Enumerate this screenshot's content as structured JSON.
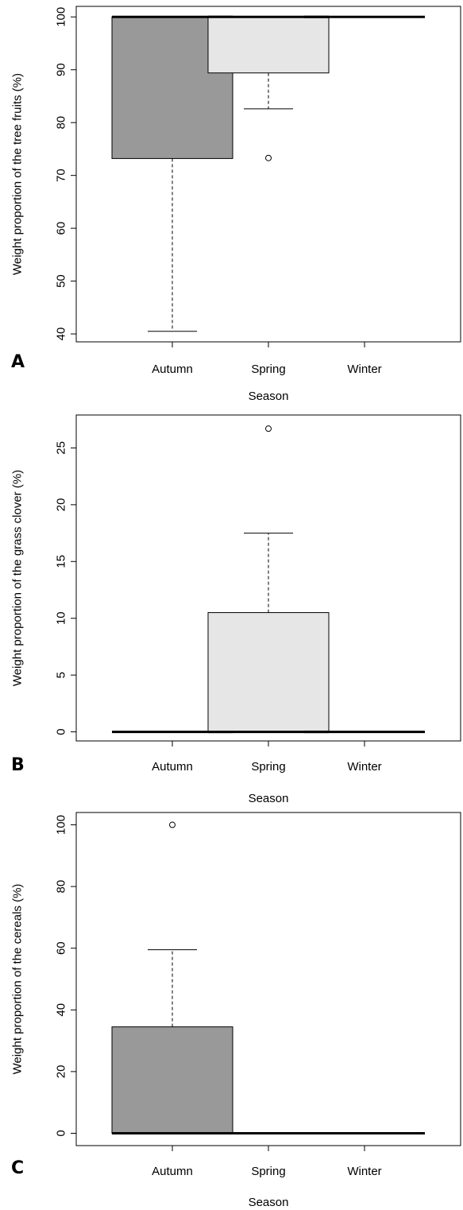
{
  "chart_data": [
    {
      "type": "boxplot",
      "panel_label": "A",
      "xlabel": "Season",
      "ylabel": "Weight proportion of the tree fruits (%)",
      "categories": [
        "Autumn",
        "Spring",
        "Winter"
      ],
      "ylim": [
        38.5,
        102
      ],
      "yticks": [
        40,
        50,
        60,
        70,
        80,
        90,
        100
      ],
      "boxes": [
        {
          "category": "Autumn",
          "whisker_low": 40.5,
          "q1": 73.2,
          "median": 100,
          "q3": 100,
          "whisker_high": 100,
          "outliers": [],
          "fill": "#999999"
        },
        {
          "category": "Spring",
          "whisker_low": 82.6,
          "q1": 89.4,
          "median": 100,
          "q3": 100,
          "whisker_high": 100,
          "outliers": [
            73.3
          ],
          "fill": "#e6e6e6"
        },
        {
          "category": "Winter",
          "whisker_low": 100,
          "q1": 100,
          "median": 100,
          "q3": 100,
          "whisker_high": 100,
          "outliers": [],
          "fill": "#ffffff"
        }
      ]
    },
    {
      "type": "boxplot",
      "panel_label": "B",
      "xlabel": "Season",
      "ylabel": "Weight proportion of the grass clover (%)",
      "categories": [
        "Autumn",
        "Spring",
        "Winter"
      ],
      "ylim": [
        -0.8,
        27.9
      ],
      "yticks": [
        0,
        5,
        10,
        15,
        20,
        25
      ],
      "boxes": [
        {
          "category": "Autumn",
          "whisker_low": 0,
          "q1": 0,
          "median": 0,
          "q3": 0,
          "whisker_high": 0,
          "outliers": [],
          "fill": "#999999"
        },
        {
          "category": "Spring",
          "whisker_low": 0,
          "q1": 0,
          "median": 0,
          "q3": 10.5,
          "whisker_high": 17.5,
          "outliers": [
            26.7
          ],
          "fill": "#e6e6e6"
        },
        {
          "category": "Winter",
          "whisker_low": 0,
          "q1": 0,
          "median": 0,
          "q3": 0,
          "whisker_high": 0,
          "outliers": [],
          "fill": "#ffffff"
        }
      ]
    },
    {
      "type": "boxplot",
      "panel_label": "C",
      "xlabel": "Season",
      "ylabel": "Weight proportion of the cereals (%)",
      "categories": [
        "Autumn",
        "Spring",
        "Winter"
      ],
      "ylim": [
        -4,
        104
      ],
      "yticks": [
        0,
        20,
        40,
        60,
        80,
        100
      ],
      "boxes": [
        {
          "category": "Autumn",
          "whisker_low": 0,
          "q1": 0,
          "median": 0,
          "q3": 34.5,
          "whisker_high": 59.5,
          "outliers": [
            100
          ],
          "fill": "#999999"
        },
        {
          "category": "Spring",
          "whisker_low": 0,
          "q1": 0,
          "median": 0,
          "q3": 0,
          "whisker_high": 0,
          "outliers": [],
          "fill": "#e6e6e6"
        },
        {
          "category": "Winter",
          "whisker_low": 0,
          "q1": 0,
          "median": 0,
          "q3": 0,
          "whisker_high": 0,
          "outliers": [],
          "fill": "#ffffff"
        }
      ]
    }
  ]
}
